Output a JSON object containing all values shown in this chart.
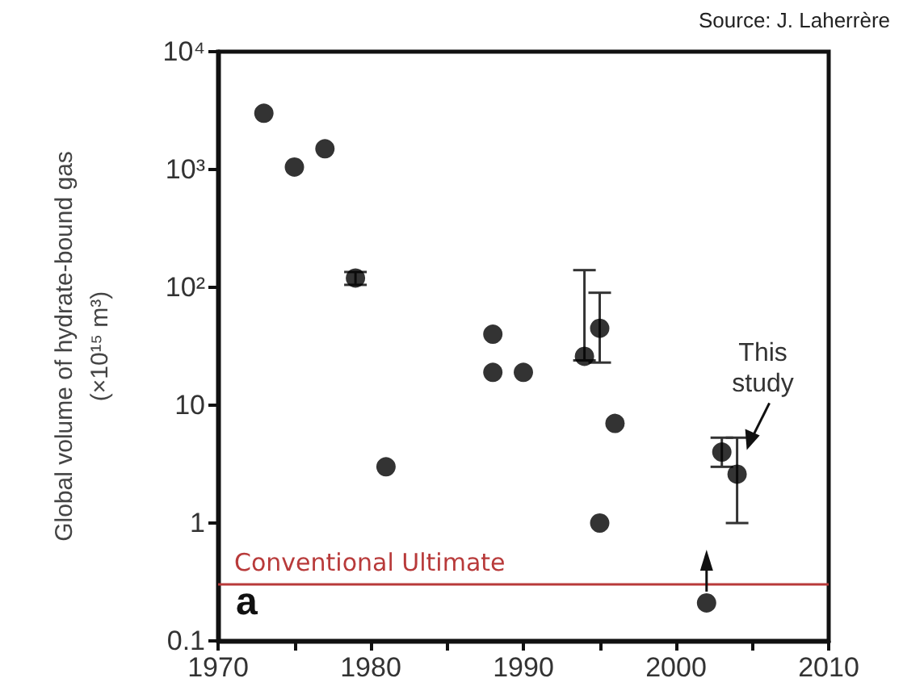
{
  "chart_data": {
    "type": "scatter",
    "ylabel": "Global volume of hydrate-bound gas\n(×10¹⁵ m³)",
    "x": [
      1973,
      1975,
      1977,
      1979,
      1981,
      1988,
      1988,
      1990,
      1994,
      1995,
      1995,
      1996,
      2002,
      2003,
      2004
    ],
    "values": [
      3000,
      1050,
      1500,
      120,
      3,
      40,
      19,
      19,
      26,
      45,
      1,
      7,
      0.21,
      4,
      2.6
    ],
    "errors": [
      null,
      null,
      null,
      [
        105,
        135
      ],
      null,
      null,
      null,
      null,
      [
        24,
        140
      ],
      [
        23,
        90
      ],
      null,
      null,
      null,
      [
        3,
        5.3
      ],
      [
        1,
        5.3
      ]
    ],
    "color": "#000000",
    "marker": "circle",
    "log": "y",
    "xlim": [
      1970,
      2010
    ],
    "xticks": [
      1970,
      {
        "value": 1975,
        "label": null
      },
      1980,
      {
        "value": 1985,
        "label": null
      },
      1990,
      {
        "value": 1995,
        "label": null
      },
      2000,
      {
        "value": 2005,
        "label": null
      },
      2010
    ],
    "ylim": [
      0.1,
      10000
    ],
    "yticks": [
      0.1,
      1,
      10,
      {
        "value": 100,
        "label": "10²"
      },
      {
        "value": 1000,
        "label": "10³"
      },
      {
        "value": 10000,
        "label": "10⁴"
      }
    ],
    "ref_lines": [
      {
        "axis": "y",
        "value": 0.3,
        "label": "Conventional Ultimate",
        "color": "#b83a3a"
      }
    ],
    "annotations": [
      "Source: J. Laherrère",
      "a",
      {
        "text": "This\nstudy",
        "x": 2004,
        "y": 2.6
      }
    ],
    "grid": false
  }
}
